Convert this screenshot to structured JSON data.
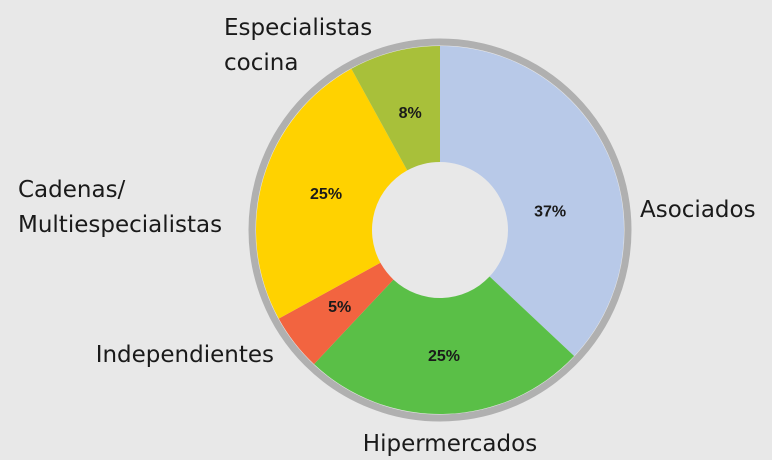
{
  "chart_data": {
    "type": "donut",
    "categories": [
      [
        "Asociados"
      ],
      [
        "Hipermercados"
      ],
      [
        "Independientes"
      ],
      [
        "Cadenas/",
        "Multiespecialistas"
      ],
      [
        "Especialistas",
        "cocina"
      ]
    ],
    "values": [
      37,
      25,
      5,
      25,
      8
    ],
    "value_labels": [
      "37%",
      "25%",
      "5%",
      "25%",
      "8%"
    ],
    "colors": [
      "#b8c9e8",
      "#5abf47",
      "#f26440",
      "#ffd200",
      "#a8c03a"
    ]
  }
}
